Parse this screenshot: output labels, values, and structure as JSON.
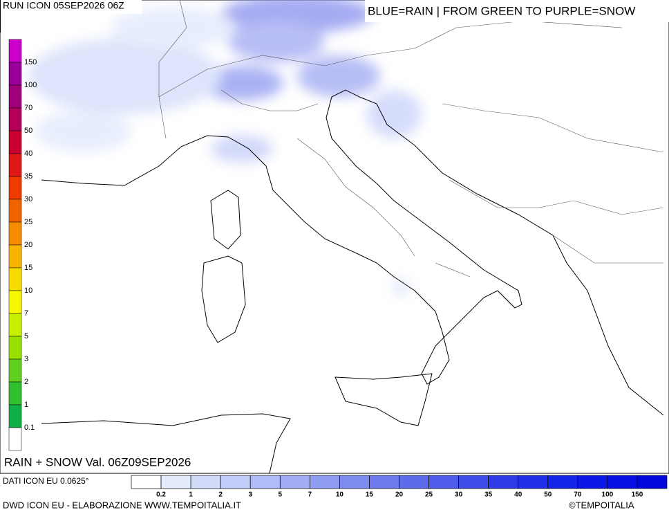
{
  "header": {
    "run": "RUN ICON 05SEP2026 06Z",
    "legend_note": "BLUE=RAIN | FROM GREEN TO PURPLE=SNOW"
  },
  "snow_scale": {
    "labels": [
      150,
      100,
      70,
      50,
      40,
      35,
      30,
      25,
      20,
      15,
      10,
      7,
      5,
      3,
      2,
      1,
      0.1
    ],
    "colors": [
      "#cc00cc",
      "#990099",
      "#a0007a",
      "#b4005a",
      "#cc0030",
      "#e01818",
      "#f03a00",
      "#f06400",
      "#f88c00",
      "#f8b400",
      "#f8dc00",
      "#f8f800",
      "#c8f000",
      "#98e000",
      "#60d020",
      "#30c030",
      "#10b048",
      "#ffffff"
    ]
  },
  "footer": {
    "valid": "RAIN + SNOW Val. 06Z09SEP2026",
    "data_source": "DATI ICON EU 0.0625°",
    "credit": "DWD ICON EU - ELABORAZIONE WWW.TEMPOITALIA.IT",
    "copyright": "©TEMPOITALIA"
  },
  "rain_scale": {
    "labels": [
      0.2,
      1,
      2,
      3,
      5,
      7,
      10,
      15,
      20,
      25,
      30,
      35,
      40,
      50,
      70,
      100,
      150
    ],
    "colors": [
      "#ffffff",
      "#e4ecfc",
      "#d2dcfa",
      "#c2ccf8",
      "#b0bcf6",
      "#a0acf4",
      "#8e9cf2",
      "#7e8cf0",
      "#6e7cee",
      "#5e6cec",
      "#4e5cea",
      "#3e4ce8",
      "#2e3ce8",
      "#2030e8",
      "#1424e8",
      "#0c18e8",
      "#0610e4",
      "#0008dc"
    ]
  }
}
